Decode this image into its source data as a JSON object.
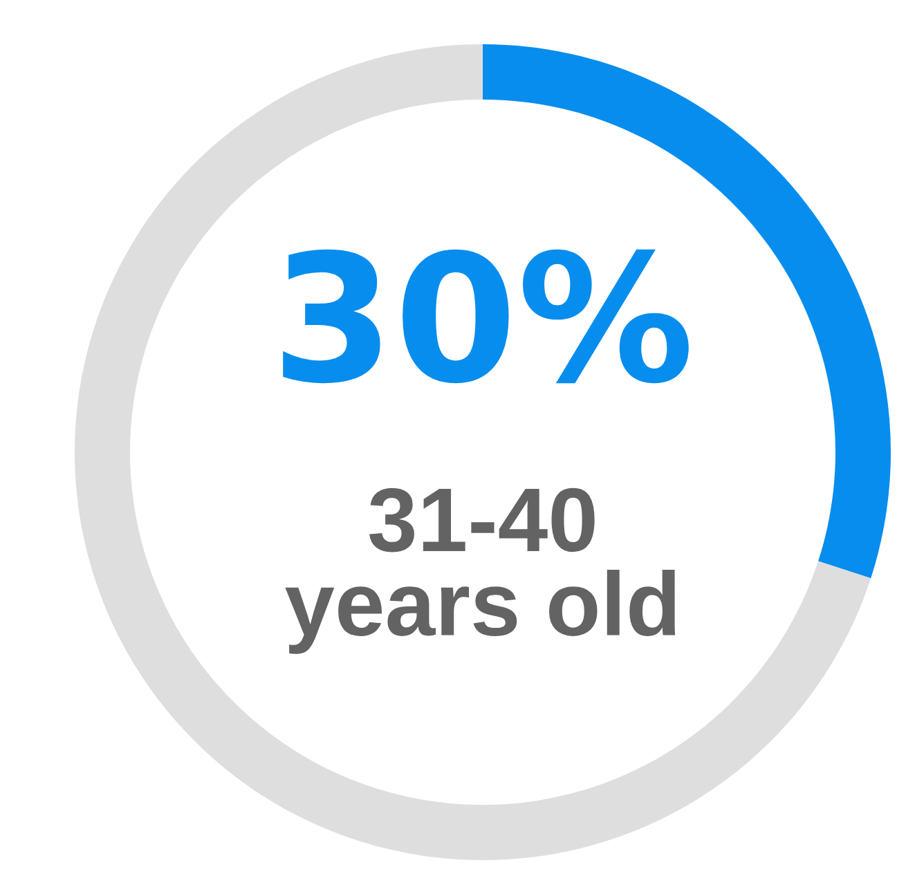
{
  "chart_data": {
    "type": "donut",
    "categories": [
      null,
      null
    ],
    "values": [
      30,
      70
    ],
    "colors": [
      "#078ded",
      "#dedede"
    ],
    "value_labels": [
      "30%",
      null
    ],
    "annotations": [
      "31-40 years old"
    ],
    "legend": false
  }
}
